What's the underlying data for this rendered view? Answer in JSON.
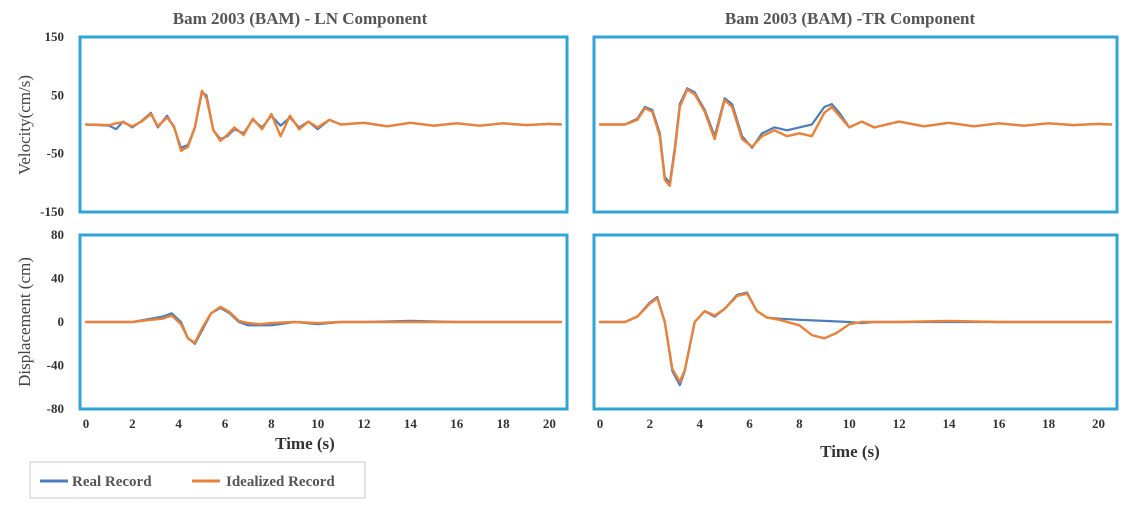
{
  "colors": {
    "real": "#4a7ebb",
    "idealized": "#e8823a",
    "frame": "#2fa4d6"
  },
  "legend": {
    "real_label": "Real Record",
    "idealized_label": "Idealized Record"
  },
  "chart_data": [
    {
      "type": "line",
      "title": "Bam 2003 (BAM) - LN Component",
      "ylabel": "Velocity(cm/s)",
      "xlabel": "",
      "xlim": [
        0,
        20.5
      ],
      "ylim": [
        -150,
        150
      ],
      "yticks": [
        "150",
        "50",
        "-50",
        "-150"
      ],
      "xticks": [],
      "series": [
        {
          "name": "Real Record",
          "x": [
            0,
            1,
            1.3,
            1.6,
            2,
            2.4,
            2.8,
            3.1,
            3.5,
            3.8,
            4.1,
            4.4,
            4.7,
            5.0,
            5.2,
            5.5,
            5.8,
            6.1,
            6.4,
            6.8,
            7.2,
            7.6,
            8,
            8.4,
            8.8,
            9.2,
            9.6,
            10,
            10.5,
            11,
            12,
            13,
            14,
            15,
            16,
            17,
            18,
            19,
            20,
            20.5
          ],
          "y": [
            0,
            -2,
            -8,
            5,
            -5,
            6,
            20,
            -5,
            15,
            -5,
            -40,
            -35,
            -5,
            55,
            50,
            -10,
            -25,
            -20,
            -8,
            -15,
            8,
            -5,
            15,
            -2,
            12,
            -5,
            5,
            -8,
            8,
            0,
            3,
            -3,
            3,
            -2,
            2,
            -2,
            2,
            -1,
            1,
            0
          ]
        },
        {
          "name": "Idealized Record",
          "x": [
            0,
            1,
            1.3,
            1.6,
            2,
            2.4,
            2.8,
            3.1,
            3.5,
            3.8,
            4.1,
            4.4,
            4.7,
            5.0,
            5.2,
            5.5,
            5.8,
            6.1,
            6.4,
            6.8,
            7.2,
            7.6,
            8,
            8.4,
            8.8,
            9.2,
            9.6,
            10,
            10.5,
            11,
            12,
            13,
            14,
            15,
            16,
            17,
            18,
            19,
            20,
            20.5
          ],
          "y": [
            0,
            -1,
            2,
            4,
            -3,
            5,
            18,
            -3,
            12,
            -3,
            -45,
            -38,
            -5,
            58,
            45,
            -10,
            -28,
            -18,
            -5,
            -18,
            10,
            -8,
            18,
            -20,
            15,
            -8,
            5,
            -5,
            8,
            0,
            3,
            -3,
            3,
            -2,
            2,
            -2,
            2,
            -1,
            1,
            0
          ]
        }
      ]
    },
    {
      "type": "line",
      "title": "Bam 2003 (BAM) -TR Component",
      "ylabel": "",
      "xlabel": "",
      "xlim": [
        0,
        20.5
      ],
      "ylim": [
        -150,
        150
      ],
      "yticks": [],
      "xticks": [],
      "series": [
        {
          "name": "Real Record",
          "x": [
            0,
            1,
            1.5,
            1.8,
            2.1,
            2.4,
            2.6,
            2.8,
            3.0,
            3.2,
            3.5,
            3.8,
            4.2,
            4.6,
            5.0,
            5.3,
            5.7,
            6.1,
            6.5,
            7,
            7.5,
            8,
            8.5,
            9,
            9.3,
            9.6,
            10,
            10.5,
            11,
            12,
            13,
            14,
            15,
            16,
            17,
            18,
            19,
            20,
            20.5
          ],
          "y": [
            0,
            0,
            10,
            30,
            25,
            -15,
            -90,
            -100,
            -40,
            35,
            62,
            55,
            25,
            -20,
            45,
            35,
            -20,
            -40,
            -15,
            -5,
            -10,
            -5,
            0,
            30,
            35,
            20,
            -5,
            5,
            -5,
            5,
            -3,
            3,
            -3,
            2,
            -2,
            2,
            -1,
            1,
            0
          ]
        },
        {
          "name": "Idealized Record",
          "x": [
            0,
            1,
            1.5,
            1.8,
            2.1,
            2.4,
            2.6,
            2.8,
            3.0,
            3.2,
            3.5,
            3.8,
            4.2,
            4.6,
            5.0,
            5.3,
            5.7,
            6.1,
            6.5,
            7,
            7.5,
            8,
            8.5,
            9,
            9.3,
            9.6,
            10,
            10.5,
            11,
            12,
            13,
            14,
            15,
            16,
            17,
            18,
            19,
            20,
            20.5
          ],
          "y": [
            0,
            0,
            8,
            28,
            22,
            -20,
            -95,
            -105,
            -45,
            30,
            60,
            52,
            22,
            -25,
            42,
            30,
            -25,
            -38,
            -20,
            -10,
            -20,
            -15,
            -20,
            20,
            30,
            15,
            -5,
            5,
            -5,
            5,
            -3,
            3,
            -3,
            2,
            -2,
            2,
            -1,
            1,
            0
          ]
        }
      ]
    },
    {
      "type": "line",
      "title": "",
      "ylabel": "Displacement (cm)",
      "xlabel": "Time (s)",
      "xlim": [
        0,
        20.5
      ],
      "ylim": [
        -80,
        80
      ],
      "yticks": [
        "80",
        "40",
        "0",
        "-40",
        "-80"
      ],
      "xticks": [
        "0",
        "2",
        "4",
        "6",
        "8",
        "10",
        "12",
        "14",
        "16",
        "18",
        "20"
      ],
      "series": [
        {
          "name": "Real Record",
          "x": [
            0,
            1,
            2,
            2.8,
            3.3,
            3.7,
            4.1,
            4.4,
            4.7,
            5.0,
            5.4,
            5.8,
            6.2,
            6.6,
            7,
            7.5,
            8,
            9,
            10,
            11,
            12,
            14,
            16,
            18,
            20,
            20.5
          ],
          "y": [
            0,
            0,
            0,
            3,
            5,
            8,
            0,
            -15,
            -20,
            -8,
            8,
            13,
            8,
            0,
            -3,
            -3,
            -3,
            0,
            -2,
            0,
            0,
            1,
            0,
            0,
            0,
            0
          ]
        },
        {
          "name": "Idealized Record",
          "x": [
            0,
            1,
            2,
            2.8,
            3.3,
            3.7,
            4.1,
            4.4,
            4.7,
            5.0,
            5.4,
            5.8,
            6.2,
            6.6,
            7,
            7.5,
            8,
            9,
            10,
            11,
            12,
            14,
            16,
            18,
            20,
            20.5
          ],
          "y": [
            0,
            0,
            0,
            2,
            3,
            6,
            -2,
            -15,
            -19,
            -6,
            8,
            14,
            9,
            1,
            -1,
            -2,
            -1,
            0,
            -1,
            0,
            0,
            0,
            0,
            0,
            0,
            0
          ]
        }
      ]
    },
    {
      "type": "line",
      "title": "",
      "ylabel": "",
      "xlabel": "Time (s)",
      "xlim": [
        0,
        20.5
      ],
      "ylim": [
        -80,
        80
      ],
      "yticks": [],
      "xticks": [
        "0",
        "2",
        "4",
        "6",
        "8",
        "10",
        "12",
        "14",
        "16",
        "18",
        "20"
      ],
      "series": [
        {
          "name": "Real Record",
          "x": [
            0,
            1,
            1.5,
            2,
            2.3,
            2.6,
            2.9,
            3.2,
            3.4,
            3.8,
            4.2,
            4.6,
            5.0,
            5.5,
            5.9,
            6.3,
            6.7,
            7.2,
            8,
            9,
            10,
            10.5,
            11,
            12,
            14,
            16,
            18,
            20,
            20.5
          ],
          "y": [
            0,
            0,
            5,
            18,
            23,
            0,
            -45,
            -58,
            -45,
            0,
            10,
            5,
            12,
            25,
            27,
            10,
            4,
            3,
            2,
            1,
            0,
            -1,
            0,
            0,
            0,
            0,
            0,
            0,
            0
          ]
        },
        {
          "name": "Idealized Record",
          "x": [
            0,
            1,
            1.5,
            2,
            2.3,
            2.6,
            2.9,
            3.2,
            3.4,
            3.8,
            4.2,
            4.6,
            5.0,
            5.5,
            5.9,
            6.3,
            6.7,
            7.2,
            8,
            8.5,
            9,
            9.5,
            10,
            10.5,
            11,
            12,
            14,
            16,
            18,
            20,
            20.5
          ],
          "y": [
            0,
            0,
            5,
            17,
            22,
            0,
            -43,
            -55,
            -44,
            0,
            10,
            6,
            12,
            24,
            26,
            10,
            4,
            2,
            -3,
            -12,
            -15,
            -10,
            -2,
            0,
            0,
            0,
            1,
            0,
            0,
            0,
            0
          ]
        }
      ]
    }
  ]
}
